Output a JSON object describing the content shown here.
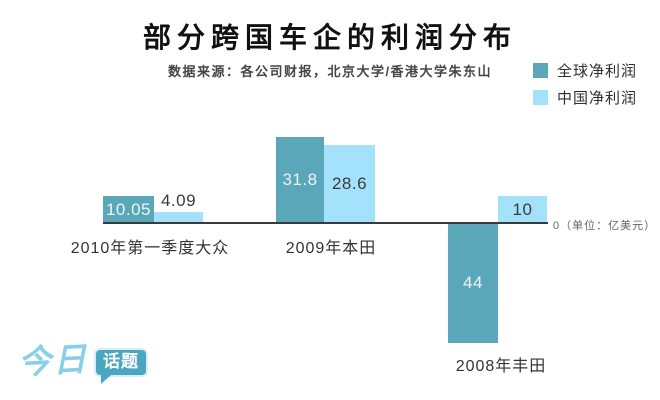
{
  "header": {
    "title": "部分跨国车企的利润分布",
    "subtitle": "数据来源：各公司财报，北京大学/香港大学朱东山"
  },
  "legend": [
    {
      "label": "全球净利润",
      "color": "#5aa7ba"
    },
    {
      "label": "中国净利润",
      "color": "#a4e1fb"
    }
  ],
  "axis": {
    "zero_label": "0（单位：亿美元）"
  },
  "chart_data": {
    "type": "bar",
    "title": "部分跨国车企的利润分布",
    "unit": "亿美元",
    "categories": [
      "2010年第一季度大众",
      "2009年本田",
      "2008年丰田"
    ],
    "series": [
      {
        "name": "全球净利润",
        "color": "#5aa7ba",
        "values": [
          10.05,
          31.8,
          -44
        ]
      },
      {
        "name": "中国净利润",
        "color": "#a4e1fb",
        "values": [
          4.09,
          28.6,
          10
        ]
      }
    ],
    "value_labels": [
      [
        "10.05",
        "4.09"
      ],
      [
        "31.8",
        "28.6"
      ],
      [
        "44",
        "10"
      ]
    ],
    "ylim": [
      -48,
      36
    ],
    "grid": false,
    "legend_position": "top-right",
    "zero_axis_label": "0（单位：亿美元）"
  },
  "logo": {
    "text_left": "今日",
    "badge": "话题"
  }
}
